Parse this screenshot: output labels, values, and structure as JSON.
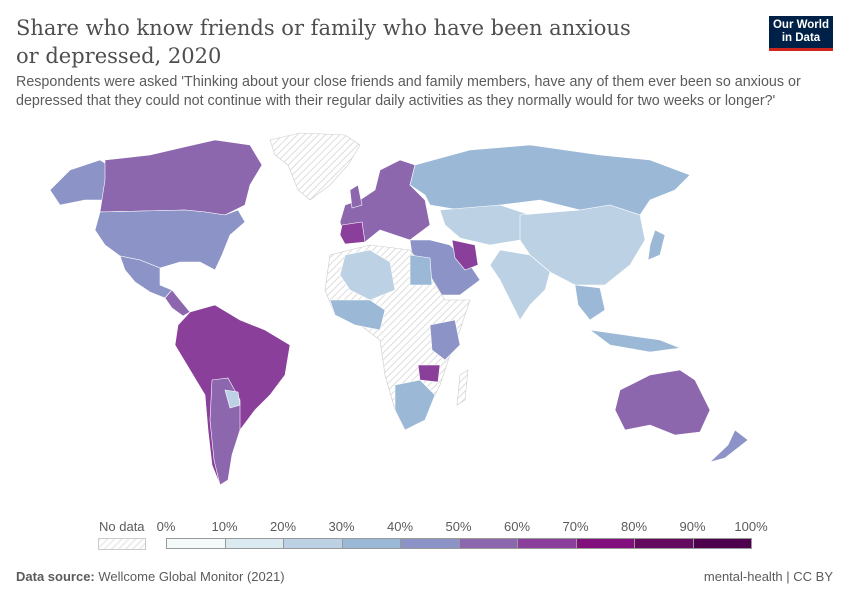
{
  "header": {
    "title": "Share who know friends or family who have been anxious or depressed, 2020",
    "subtitle": "Respondents were asked 'Thinking about your close friends and family members, have any of them ever been so anxious or depressed that they could not continue with their regular daily activities as they normally would for two weeks or longer?'",
    "logo_text": "Our World in Data"
  },
  "legend": {
    "no_data_label": "No data",
    "ticks": [
      "0%",
      "10%",
      "20%",
      "30%",
      "40%",
      "50%",
      "60%",
      "70%",
      "80%",
      "90%",
      "100%"
    ],
    "colors": [
      "#f4f9f9",
      "#dbe9f0",
      "#bcd1e4",
      "#9bb8d6",
      "#8c93c6",
      "#8c67ae",
      "#8a3f9b",
      "#810f7c",
      "#650b5f",
      "#4d004b"
    ]
  },
  "map_data": {
    "type": "choropleth",
    "year": 2020,
    "regions": [
      {
        "region": "Canada",
        "bin": "50-60%"
      },
      {
        "region": "United States",
        "bin": "40-50%"
      },
      {
        "region": "Mexico",
        "bin": "40-50%"
      },
      {
        "region": "Greenland",
        "bin": "No data"
      },
      {
        "region": "Brazil",
        "bin": "60-70%"
      },
      {
        "region": "Argentina",
        "bin": "50-60%"
      },
      {
        "region": "Russia",
        "bin": "30-40%"
      },
      {
        "region": "China",
        "bin": "20-30%"
      },
      {
        "region": "India",
        "bin": "20-30%"
      },
      {
        "region": "Iran",
        "bin": "60-70%"
      },
      {
        "region": "Australia",
        "bin": "50-60%"
      },
      {
        "region": "New Zealand",
        "bin": "40-50%"
      },
      {
        "region": "South Africa",
        "bin": "30-40%"
      },
      {
        "region": "Spain",
        "bin": "60-70%"
      },
      {
        "region": "France",
        "bin": "50-60%"
      }
    ]
  },
  "footer": {
    "source_label": "Data source:",
    "source": "Wellcome Global Monitor (2021)",
    "right": "mental-health | CC BY"
  }
}
